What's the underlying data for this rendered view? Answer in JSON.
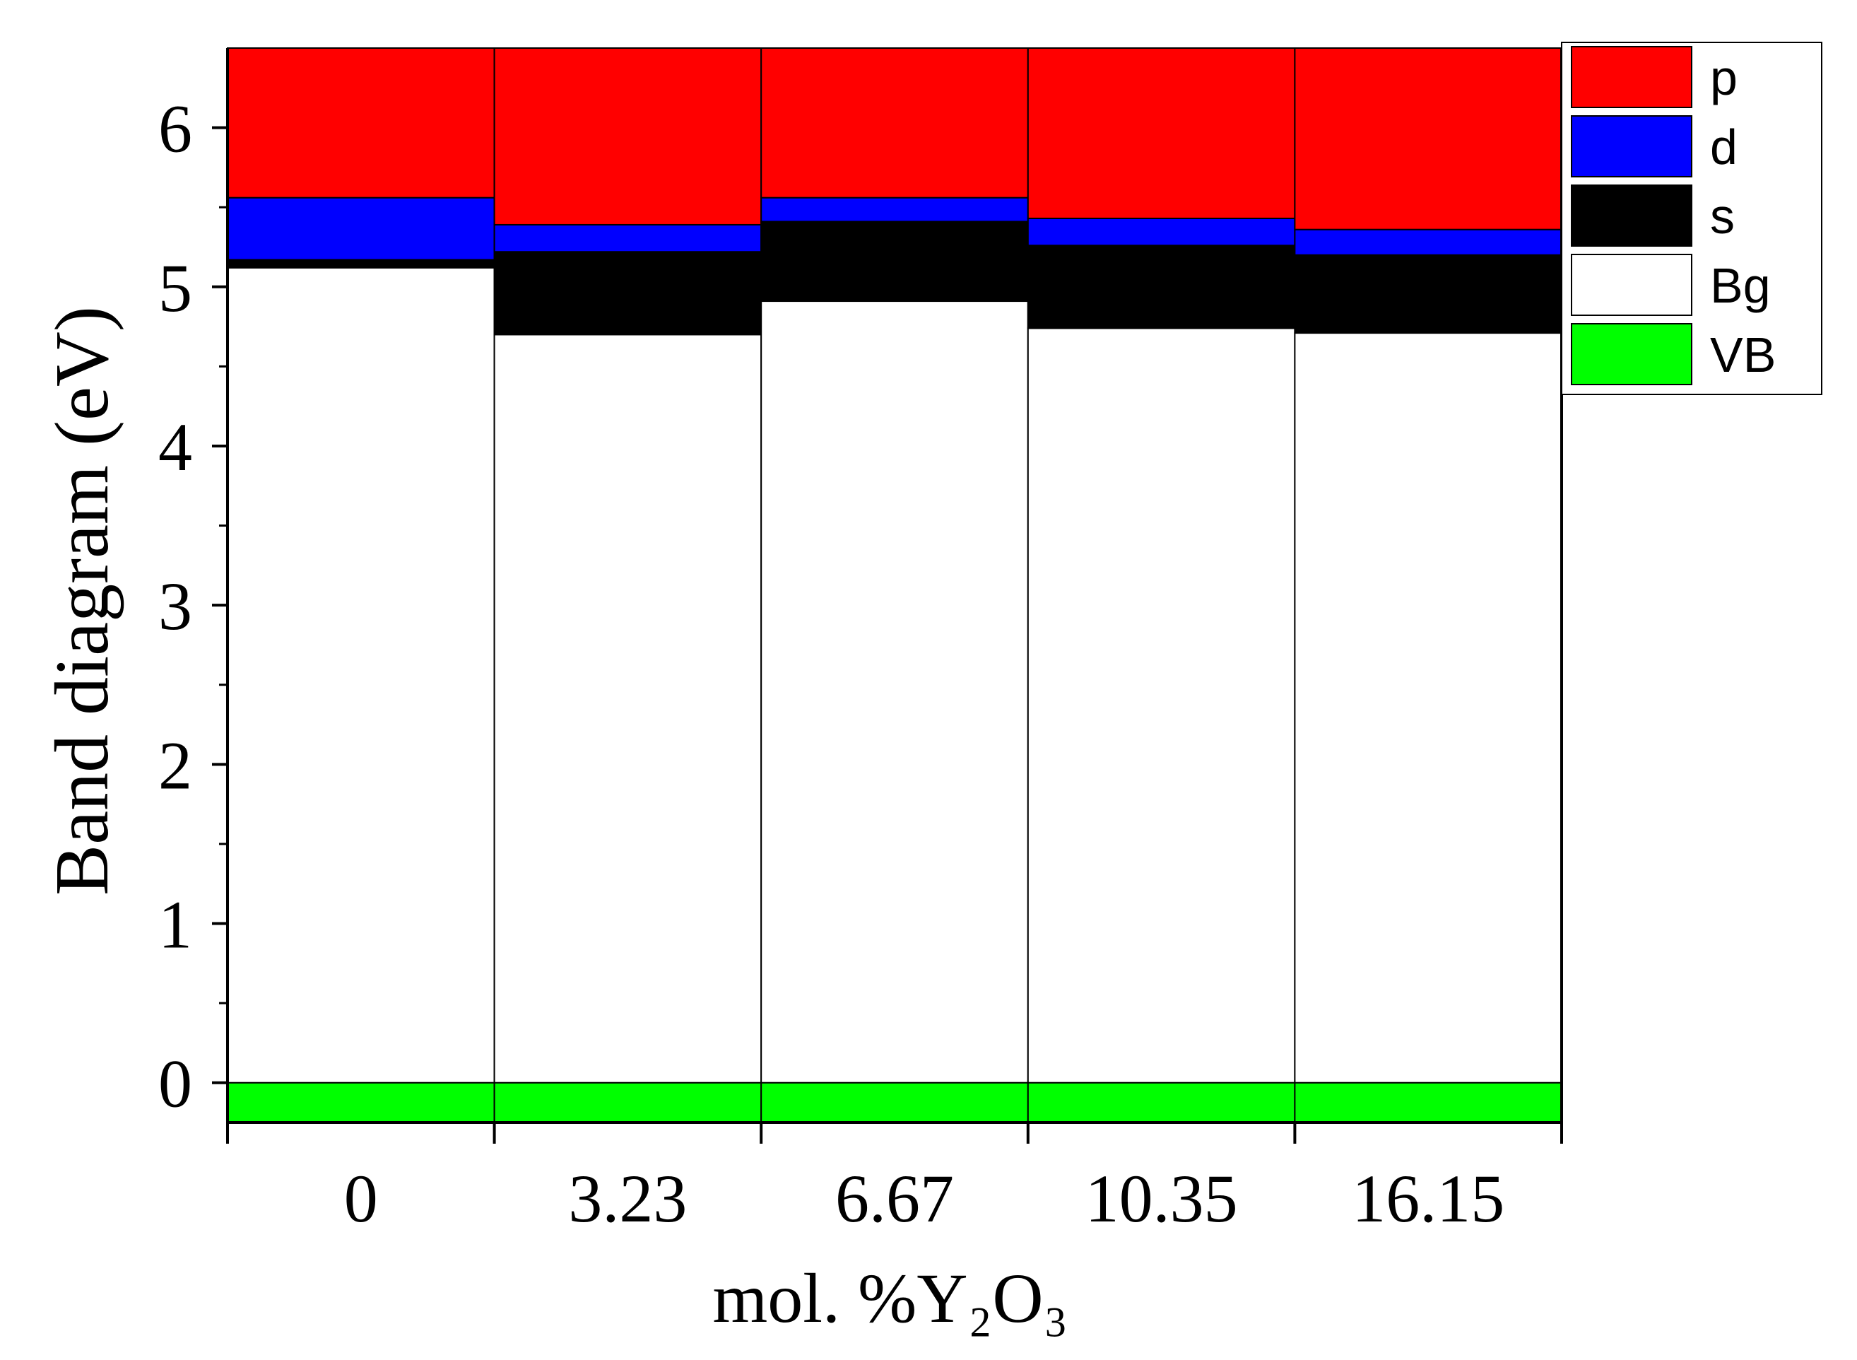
{
  "chart_data": {
    "type": "bar",
    "stacked": true,
    "categories": [
      "0",
      "3.23",
      "6.67",
      "10.35",
      "16.15"
    ],
    "xlabel": "mol. %Y₂O₃",
    "ylabel": "Band diagram (eV)",
    "ylim": [
      -0.25,
      6.5
    ],
    "yticks": [
      "0",
      "1",
      "2",
      "3",
      "4",
      "5",
      "6"
    ],
    "grid": false,
    "legend_position": "top-right",
    "series": [
      {
        "name": "VB",
        "color": "#00ff00",
        "values": [
          -0.25,
          -0.25,
          -0.25,
          -0.25,
          -0.25
        ]
      },
      {
        "name": "Bg",
        "color": "#ffffff",
        "values": [
          5.12,
          4.7,
          4.91,
          4.74,
          4.71
        ]
      },
      {
        "name": "s",
        "color": "#000000",
        "values": [
          0.05,
          0.52,
          0.5,
          0.52,
          0.49
        ]
      },
      {
        "name": "d",
        "color": "#0000ff",
        "values": [
          0.39,
          0.17,
          0.15,
          0.17,
          0.16
        ]
      },
      {
        "name": "p",
        "color": "#ff0000",
        "values": [
          0.94,
          1.11,
          0.94,
          1.07,
          1.14
        ]
      }
    ]
  }
}
